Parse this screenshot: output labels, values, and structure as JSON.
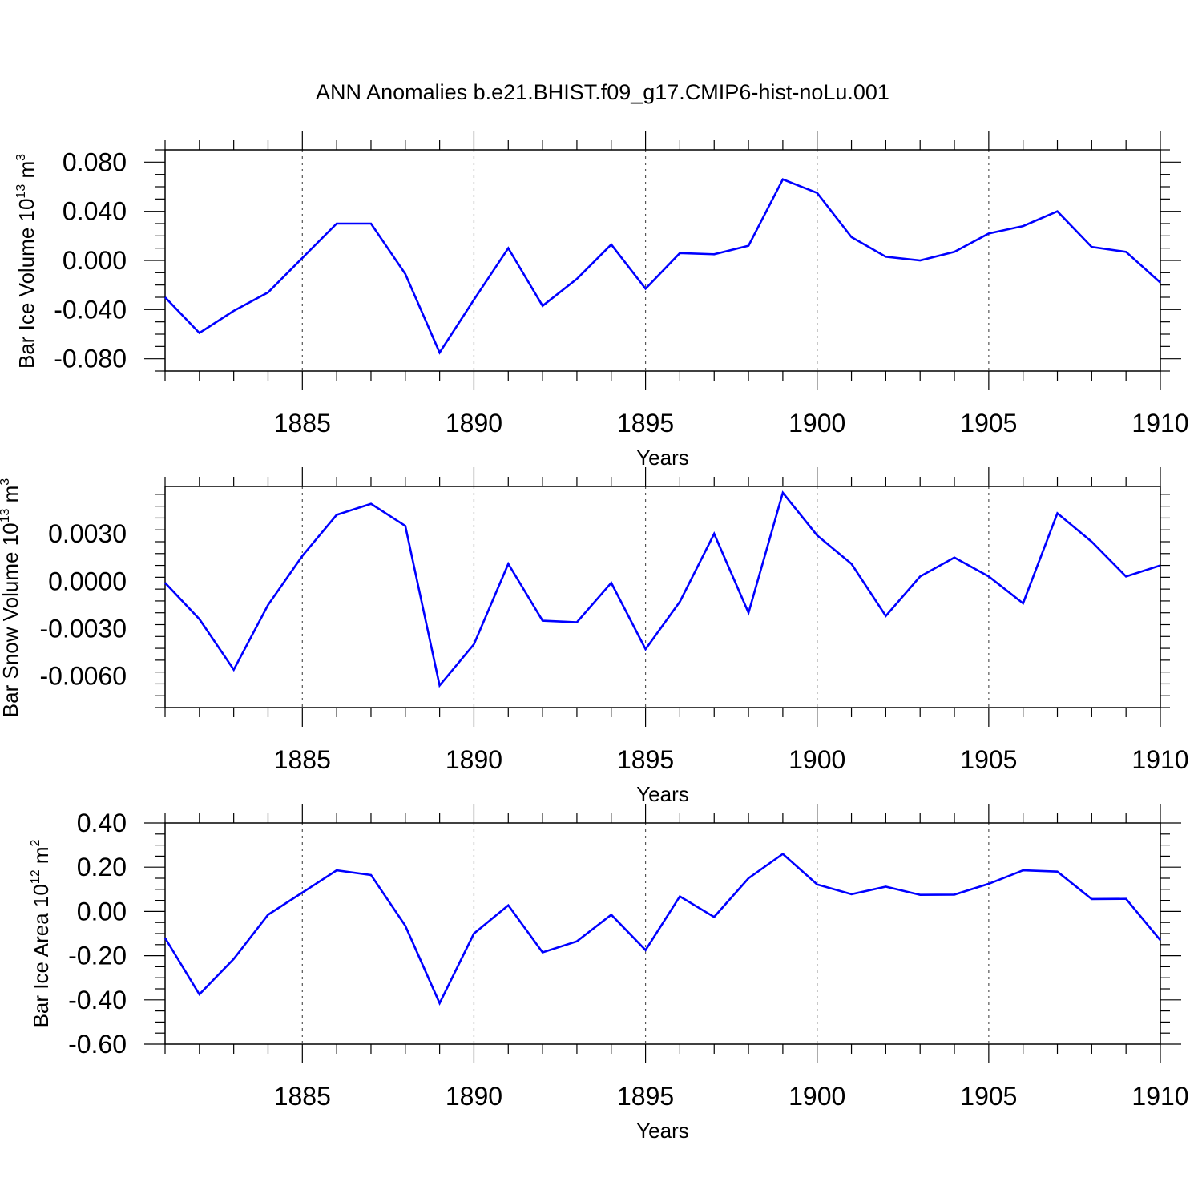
{
  "title": "ANN Anomalies b.e21.BHIST.f09_g17.CMIP6-hist-noLu.001",
  "colors": {
    "line": "#0000ff",
    "axis": "#000000",
    "grid": "#555555"
  },
  "chart_data": [
    {
      "type": "line",
      "ylabel": {
        "base": "Bar Ice Volume 10",
        "exp": "13",
        "unit": " m",
        "unit_exp": "3"
      },
      "xlabel": "Years",
      "xlim": [
        1881,
        1910
      ],
      "ylim": [
        -0.09,
        0.09
      ],
      "yticks": [
        -0.08,
        -0.04,
        0.0,
        0.04,
        0.08
      ],
      "yticklabels": [
        "-0.080",
        "-0.040",
        "0.000",
        "0.040",
        "0.080"
      ],
      "xticks": [
        1885,
        1890,
        1895,
        1900,
        1905,
        1910
      ],
      "xticklabels": [
        "1885",
        "1890",
        "1895",
        "1900",
        "1905",
        "1910"
      ],
      "grid": "vertical dashed at 1885, 1890, 1895, 1900, 1905",
      "series": [
        {
          "x": [
            1881,
            1882,
            1883,
            1884,
            1885,
            1886,
            1887,
            1888,
            1889,
            1890,
            1891,
            1892,
            1893,
            1894,
            1895,
            1896,
            1897,
            1898,
            1899,
            1900,
            1901,
            1902,
            1903,
            1904,
            1905,
            1906,
            1907,
            1908,
            1909,
            1910
          ],
          "values": [
            -0.03,
            -0.059,
            -0.041,
            -0.026,
            0.002,
            0.03,
            0.03,
            -0.011,
            -0.075,
            -0.032,
            0.01,
            -0.037,
            -0.015,
            0.013,
            -0.023,
            0.006,
            0.005,
            0.012,
            0.066,
            0.055,
            0.019,
            0.003,
            0.0,
            0.007,
            0.022,
            0.028,
            0.04,
            0.011,
            0.007,
            -0.018
          ]
        }
      ]
    },
    {
      "type": "line",
      "ylabel": {
        "base": "Bar Snow Volume 10",
        "exp": "13",
        "unit": " m",
        "unit_exp": "3"
      },
      "xlabel": "Years",
      "xlim": [
        1881,
        1910
      ],
      "ylim": [
        -0.008,
        0.006
      ],
      "yticks": [
        -0.006,
        -0.003,
        0.0,
        0.003
      ],
      "yticklabels": [
        "-0.0060",
        "-0.0030",
        "0.0000",
        "0.0030"
      ],
      "xticks": [
        1885,
        1890,
        1895,
        1900,
        1905,
        1910
      ],
      "xticklabels": [
        "1885",
        "1890",
        "1895",
        "1900",
        "1905",
        "1910"
      ],
      "grid": "vertical dashed at 1885, 1890, 1895, 1900, 1905",
      "series": [
        {
          "x": [
            1881,
            1882,
            1883,
            1884,
            1885,
            1886,
            1887,
            1888,
            1889,
            1890,
            1891,
            1892,
            1893,
            1894,
            1895,
            1896,
            1897,
            1898,
            1899,
            1900,
            1901,
            1902,
            1903,
            1904,
            1905,
            1906,
            1907,
            1908,
            1909,
            1910
          ],
          "values": [
            -0.0001,
            -0.0024,
            -0.0056,
            -0.0015,
            0.0016,
            0.0042,
            0.0049,
            0.0035,
            -0.0066,
            -0.004,
            0.0011,
            -0.0025,
            -0.0026,
            -0.0001,
            -0.0043,
            -0.0013,
            0.003,
            -0.002,
            0.0056,
            0.0029,
            0.0011,
            -0.0022,
            0.0003,
            0.0015,
            0.0003,
            -0.0014,
            0.0043,
            0.0025,
            0.0003,
            0.001
          ]
        }
      ]
    },
    {
      "type": "line",
      "ylabel": {
        "base": "Bar Ice Area 10",
        "exp": "12",
        "unit": " m",
        "unit_exp": "2"
      },
      "xlabel": "Years",
      "xlim": [
        1881,
        1910
      ],
      "ylim": [
        -0.6,
        0.4
      ],
      "yticks": [
        -0.6,
        -0.4,
        -0.2,
        0.0,
        0.2,
        0.4
      ],
      "yticklabels": [
        "-0.60",
        "-0.40",
        "-0.20",
        "0.00",
        "0.20",
        "0.40"
      ],
      "xticks": [
        1885,
        1890,
        1895,
        1900,
        1905,
        1910
      ],
      "xticklabels": [
        "1885",
        "1890",
        "1895",
        "1900",
        "1905",
        "1910"
      ],
      "grid": "vertical dashed at 1885, 1890, 1895, 1900, 1905",
      "series": [
        {
          "x": [
            1881,
            1882,
            1883,
            1884,
            1885,
            1886,
            1887,
            1888,
            1889,
            1890,
            1891,
            1892,
            1893,
            1894,
            1895,
            1896,
            1897,
            1898,
            1899,
            1900,
            1901,
            1902,
            1903,
            1904,
            1905,
            1906,
            1907,
            1908,
            1909,
            1910
          ],
          "values": [
            -0.12,
            -0.375,
            -0.215,
            -0.015,
            0.085,
            0.186,
            0.165,
            -0.065,
            -0.415,
            -0.1,
            0.028,
            -0.185,
            -0.135,
            -0.015,
            -0.175,
            0.068,
            -0.025,
            0.15,
            0.26,
            0.122,
            0.078,
            0.112,
            0.075,
            0.076,
            0.125,
            0.186,
            0.18,
            0.056,
            0.057,
            -0.13
          ]
        }
      ]
    }
  ]
}
